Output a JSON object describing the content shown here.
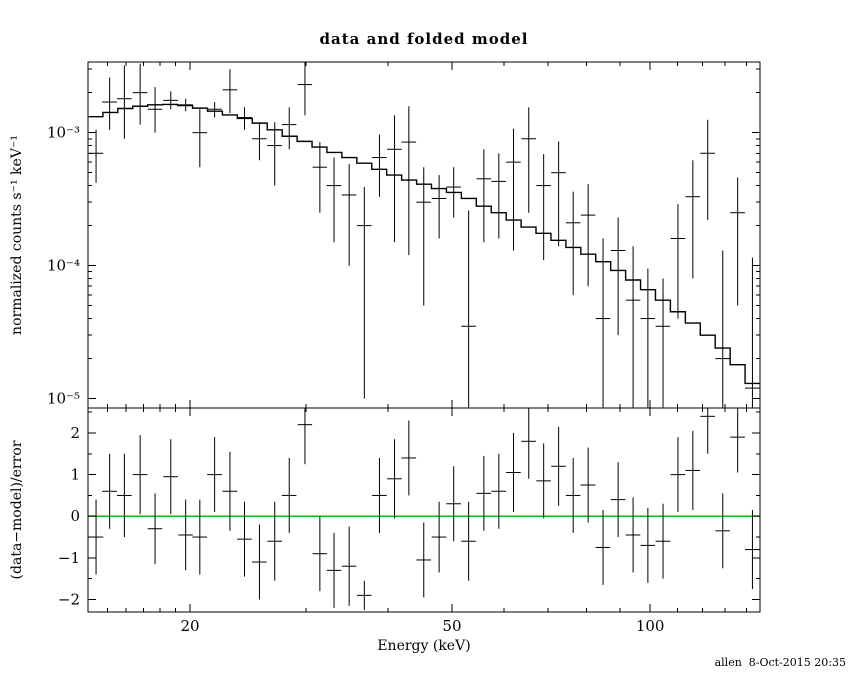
{
  "title": "data and folded model",
  "footer": "allen  8-Oct-2015 20:35",
  "chart_data": {
    "type": "line",
    "plot_style": "xspec-data-and-folded-model",
    "grid": false,
    "legend": "none",
    "x": {
      "label": "Energy (keV)",
      "scale": "log",
      "lim": [
        14.0,
        146.83
      ],
      "ticks": [
        {
          "v": 20,
          "label": "20"
        },
        {
          "v": 50,
          "label": "50"
        },
        {
          "v": 100,
          "label": "100"
        }
      ],
      "minor_ticks": [
        15,
        16,
        17,
        18,
        19,
        30,
        40,
        60,
        70,
        80,
        90,
        110,
        120,
        130,
        140
      ]
    },
    "panels": [
      {
        "name": "spectrum",
        "ylabel": "normalized counts s⁻¹ keV⁻¹",
        "yscale": "log",
        "ylim": [
          8.5e-06,
          0.0034
        ],
        "yticks": [
          {
            "v": 0.001,
            "label": "10⁻³"
          },
          {
            "v": 0.0001,
            "label": "10⁻⁴"
          },
          {
            "v": 1e-05,
            "label": "10⁻⁵"
          }
        ],
        "model_color": "#000000",
        "model_step_edges": [
          14.0,
          14.75,
          15.54,
          16.37,
          17.25,
          18.18,
          19.15,
          20.18,
          21.26,
          22.4,
          23.6,
          24.87,
          26.2,
          27.61,
          29.09,
          30.65,
          32.29,
          34.02,
          35.85,
          37.77,
          39.79,
          41.93,
          44.18,
          46.54,
          49.04,
          51.67,
          54.44,
          57.36,
          60.43,
          63.67,
          67.08,
          70.68,
          74.47,
          78.46,
          82.67,
          87.1,
          91.77,
          96.69,
          101.87,
          107.33,
          113.09,
          119.15,
          125.54,
          132.27,
          139.36,
          146.83
        ],
        "model_step_values": [
          0.00132,
          0.00142,
          0.00152,
          0.00158,
          0.00162,
          0.00163,
          0.0016,
          0.00153,
          0.00145,
          0.00136,
          0.00128,
          0.00118,
          0.00105,
          0.00094,
          0.00086,
          0.00078,
          0.00071,
          0.00065,
          0.00059,
          0.00053,
          0.00048,
          0.00044,
          0.00041,
          0.00038,
          0.000355,
          0.00032,
          0.00028,
          0.00025,
          0.00022,
          0.000195,
          0.000175,
          0.000155,
          0.000137,
          0.000122,
          0.000107,
          9.2e-05,
          7.8e-05,
          6.6e-05,
          5.5e-05,
          4.5e-05,
          3.7e-05,
          3e-05,
          2.4e-05,
          1.8e-05,
          1.3e-05
        ],
        "points_format": [
          "energy_keV",
          "half_width_keV",
          "value",
          "err_low",
          "err_high"
        ],
        "points": [
          [
            14.4,
            0.37,
            0.0007,
            0.00042,
            0.00105
          ],
          [
            15.1,
            0.39,
            0.0017,
            0.00105,
            0.0026
          ],
          [
            15.9,
            0.41,
            0.0018,
            0.0009,
            0.0032
          ],
          [
            16.8,
            0.43,
            0.002,
            0.00115,
            0.0033
          ],
          [
            17.7,
            0.45,
            0.0015,
            0.001,
            0.0022
          ],
          [
            18.7,
            0.48,
            0.00175,
            0.0015,
            0.00205
          ],
          [
            19.7,
            0.5,
            0.00162,
            0.00145,
            0.0018
          ],
          [
            20.7,
            0.53,
            0.001,
            0.00055,
            0.0015
          ],
          [
            21.8,
            0.56,
            0.0015,
            0.0013,
            0.0017
          ],
          [
            23.0,
            0.59,
            0.0021,
            0.0014,
            0.003
          ],
          [
            24.2,
            0.62,
            0.0013,
            0.00105,
            0.00155
          ],
          [
            25.5,
            0.65,
            0.0009,
            0.00062,
            0.0012
          ],
          [
            26.9,
            0.69,
            0.0008,
            0.0004,
            0.0012
          ],
          [
            28.3,
            0.72,
            0.00115,
            0.00075,
            0.00155
          ],
          [
            29.9,
            0.76,
            0.0023,
            0.00135,
            0.0034
          ],
          [
            31.5,
            0.8,
            0.00055,
            0.00025,
            0.00085
          ],
          [
            33.1,
            0.85,
            0.0004,
            0.00015,
            0.00065
          ],
          [
            34.9,
            0.89,
            0.00034,
            0.0001,
            0.00058
          ],
          [
            36.8,
            0.94,
            0.0002,
            1e-05,
            0.00039
          ],
          [
            38.8,
            0.99,
            0.00065,
            0.00033,
            0.00097
          ],
          [
            40.9,
            1.05,
            0.00075,
            0.00015,
            0.00135
          ],
          [
            43.0,
            1.1,
            0.00085,
            0.00012,
            0.00158
          ],
          [
            45.3,
            1.16,
            0.0003,
            5e-05,
            0.00055
          ],
          [
            47.8,
            1.22,
            0.00032,
            0.00016,
            0.00048
          ],
          [
            50.3,
            1.29,
            0.00039,
            0.00023,
            0.00055
          ],
          [
            53.0,
            1.36,
            3.5e-05,
            8.6e-06,
            0.00026
          ],
          [
            55.9,
            1.43,
            0.00045,
            0.00015,
            0.00075
          ],
          [
            58.9,
            1.51,
            0.00043,
            0.00016,
            0.0007
          ],
          [
            62.0,
            1.59,
            0.0006,
            0.00013,
            0.00107
          ],
          [
            65.4,
            1.67,
            0.0009,
            0.00025,
            0.00155
          ],
          [
            68.9,
            1.76,
            0.0004,
            0.00011,
            0.00069
          ],
          [
            72.6,
            1.86,
            0.0005,
            0.00014,
            0.00086
          ],
          [
            76.4,
            1.95,
            0.00021,
            6e-05,
            0.00036
          ],
          [
            80.5,
            2.06,
            0.00024,
            7e-05,
            0.00041
          ],
          [
            84.8,
            2.17,
            4e-05,
            8.6e-06,
            0.00016
          ],
          [
            89.4,
            2.29,
            0.00013,
            3e-05,
            0.00023
          ],
          [
            94.2,
            2.41,
            5.5e-05,
            8.6e-06,
            0.00014
          ],
          [
            99.2,
            2.54,
            4e-05,
            8.6e-06,
            9.5e-05
          ],
          [
            104.6,
            2.67,
            3.5e-05,
            8.6e-06,
            8e-05
          ],
          [
            110.2,
            2.82,
            0.00016,
            4e-05,
            0.00029
          ],
          [
            116.1,
            2.97,
            0.00033,
            8e-05,
            0.00062
          ],
          [
            122.3,
            3.13,
            0.0007,
            0.00022,
            0.00125
          ],
          [
            128.9,
            3.29,
            2e-05,
            8.6e-06,
            0.00013
          ],
          [
            135.8,
            3.47,
            0.00025,
            5e-05,
            0.00046
          ],
          [
            143.0,
            3.66,
            1.2e-05,
            8.6e-06,
            0.000115
          ]
        ]
      },
      {
        "name": "residuals",
        "ylabel": "(data−model)/error",
        "yscale": "linear",
        "ylim": [
          -2.3,
          2.6
        ],
        "yticks": [
          {
            "v": 2,
            "label": "2"
          },
          {
            "v": 1,
            "label": "1"
          },
          {
            "v": 0,
            "label": "0"
          },
          {
            "v": -1,
            "label": "−1"
          },
          {
            "v": -2,
            "label": "−2"
          }
        ],
        "minor_step": 0.5,
        "zero_line_color": "#00c800",
        "points_format": [
          "energy_keV",
          "half_width_keV",
          "residual",
          "error"
        ],
        "points": [
          [
            14.4,
            0.37,
            -0.5,
            0.9
          ],
          [
            15.1,
            0.39,
            0.6,
            0.9
          ],
          [
            15.9,
            0.41,
            0.5,
            1.0
          ],
          [
            16.8,
            0.43,
            1.0,
            0.95
          ],
          [
            17.7,
            0.45,
            -0.3,
            0.85
          ],
          [
            18.7,
            0.48,
            0.95,
            0.9
          ],
          [
            19.7,
            0.5,
            -0.45,
            0.85
          ],
          [
            20.7,
            0.53,
            -0.5,
            0.9
          ],
          [
            21.8,
            0.56,
            1.0,
            0.9
          ],
          [
            23.0,
            0.59,
            0.6,
            0.95
          ],
          [
            24.2,
            0.62,
            -0.55,
            0.9
          ],
          [
            25.5,
            0.65,
            -1.1,
            0.9
          ],
          [
            26.9,
            0.69,
            -0.6,
            0.95
          ],
          [
            28.3,
            0.72,
            0.5,
            0.9
          ],
          [
            29.9,
            0.76,
            2.2,
            0.95
          ],
          [
            31.5,
            0.8,
            -0.9,
            0.9
          ],
          [
            33.1,
            0.85,
            -1.3,
            0.9
          ],
          [
            34.9,
            0.89,
            -1.2,
            0.95
          ],
          [
            36.8,
            0.94,
            -1.9,
            0.35
          ],
          [
            38.8,
            0.99,
            0.5,
            0.9
          ],
          [
            40.9,
            1.05,
            0.9,
            0.95
          ],
          [
            43.0,
            1.1,
            1.4,
            0.9
          ],
          [
            45.3,
            1.16,
            -1.05,
            0.9
          ],
          [
            47.8,
            1.22,
            -0.5,
            0.85
          ],
          [
            50.3,
            1.29,
            0.3,
            0.9
          ],
          [
            53.0,
            1.36,
            -0.6,
            0.95
          ],
          [
            55.9,
            1.43,
            0.55,
            0.9
          ],
          [
            58.9,
            1.51,
            0.6,
            0.9
          ],
          [
            62.0,
            1.59,
            1.05,
            0.95
          ],
          [
            65.4,
            1.67,
            1.8,
            0.9
          ],
          [
            68.9,
            1.76,
            0.85,
            0.9
          ],
          [
            72.6,
            1.86,
            1.2,
            0.95
          ],
          [
            76.4,
            1.95,
            0.5,
            0.9
          ],
          [
            80.5,
            2.06,
            0.75,
            0.9
          ],
          [
            84.8,
            2.17,
            -0.75,
            0.9
          ],
          [
            89.4,
            2.29,
            0.4,
            0.9
          ],
          [
            94.2,
            2.41,
            -0.45,
            0.9
          ],
          [
            99.2,
            2.54,
            -0.7,
            0.9
          ],
          [
            104.6,
            2.67,
            -0.6,
            0.9
          ],
          [
            110.2,
            2.82,
            1.0,
            0.9
          ],
          [
            116.1,
            2.97,
            1.1,
            0.95
          ],
          [
            122.3,
            3.13,
            2.4,
            0.9
          ],
          [
            128.9,
            3.29,
            -0.35,
            0.9
          ],
          [
            135.8,
            3.47,
            1.9,
            0.85
          ],
          [
            143.0,
            3.66,
            -0.8,
            0.95
          ]
        ]
      }
    ]
  }
}
